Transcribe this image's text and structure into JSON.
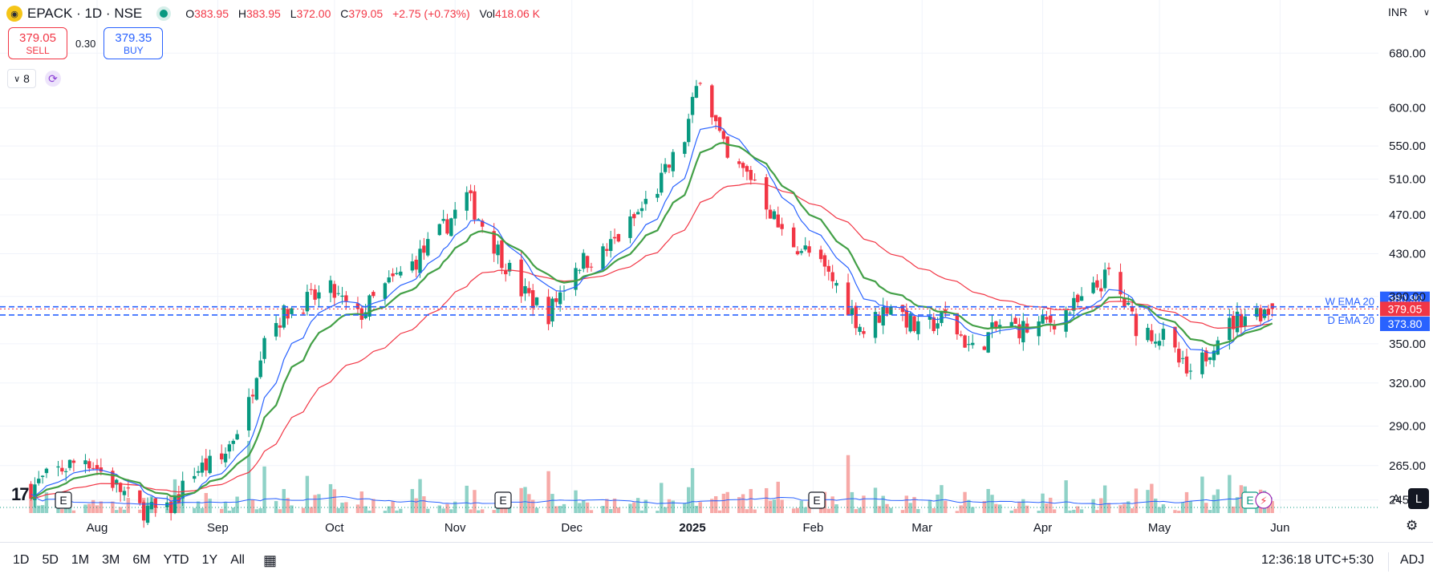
{
  "header": {
    "symbol": "EPACK · 1D · NSE",
    "open_label": "O",
    "open": "383.95",
    "high_label": "H",
    "high": "383.95",
    "low_label": "L",
    "low": "372.00",
    "close_label": "C",
    "close": "379.05",
    "change": "+2.75 (+0.73%)",
    "vol_label": "Vol",
    "vol": "418.06 K"
  },
  "trade": {
    "sell_price": "379.05",
    "sell_label": "SELL",
    "spread": "0.30",
    "buy_price": "379.35",
    "buy_label": "BUY"
  },
  "indicators_toggle": {
    "count": "8"
  },
  "currency": "INR",
  "scale_buttons": {
    "auto": "A",
    "log": "L"
  },
  "bottom_bar": {
    "ranges": [
      "1D",
      "5D",
      "1M",
      "3M",
      "6M",
      "YTD",
      "1Y",
      "All"
    ],
    "clock": "12:36:18 UTC+5:30",
    "adj": "ADJ"
  },
  "colors": {
    "up": "#089981",
    "down": "#f23645",
    "ema_blue": "#2962ff",
    "ema_green": "#43a047",
    "ema_red": "#f23645"
  },
  "icons": [
    "logo-icon",
    "live-dot-icon",
    "chevron-down-icon",
    "sync-icon",
    "calendar-icon",
    "gear-icon",
    "earnings-icon",
    "lightning-icon"
  ],
  "chart_data": {
    "type": "candlestick",
    "symbol": "EPACK",
    "interval": "1D",
    "exchange": "NSE",
    "scale": "log",
    "y_ticks": [
      245,
      265,
      290,
      320,
      350,
      390,
      430,
      470,
      510,
      550,
      600,
      680
    ],
    "y_tick_labels": [
      "245.00",
      "265.00",
      "290.00",
      "320.00",
      "350.00",
      "390.00",
      "430.00",
      "470.00",
      "510.00",
      "550.00",
      "600.00",
      "680.00"
    ],
    "x_labels": [
      "Aug",
      "Sep",
      "Oct",
      "Nov",
      "Dec",
      "2025",
      "Feb",
      "Mar",
      "Apr",
      "May",
      "Jun"
    ],
    "ylim": [
      228,
      700
    ],
    "price_labels": [
      {
        "text": "380.90",
        "value": 380.9,
        "color": "#2962ff"
      },
      {
        "text": "379.05",
        "value": 379.05,
        "color": "#f23645"
      },
      {
        "text": "373.80",
        "value": 373.8,
        "color": "#2962ff"
      }
    ],
    "annotations": [
      {
        "text": "W EMA 20",
        "value": 380.9
      },
      {
        "text": "D EMA 20",
        "value": 373.8
      }
    ],
    "earnings_markers": [
      "E",
      "E",
      "E",
      "E"
    ],
    "anchors": [
      {
        "date": "2024-07-15",
        "price": 252
      },
      {
        "date": "2024-07-22",
        "price": 262
      },
      {
        "date": "2024-07-29",
        "price": 270
      },
      {
        "date": "2024-08-05",
        "price": 255
      },
      {
        "date": "2024-08-12",
        "price": 240
      },
      {
        "date": "2024-08-19",
        "price": 238
      },
      {
        "date": "2024-08-26",
        "price": 262
      },
      {
        "date": "2024-09-02",
        "price": 268
      },
      {
        "date": "2024-09-09",
        "price": 305
      },
      {
        "date": "2024-09-13",
        "price": 360
      },
      {
        "date": "2024-09-20",
        "price": 380
      },
      {
        "date": "2024-09-30",
        "price": 395
      },
      {
        "date": "2024-10-07",
        "price": 372
      },
      {
        "date": "2024-10-14",
        "price": 398
      },
      {
        "date": "2024-10-21",
        "price": 420
      },
      {
        "date": "2024-10-28",
        "price": 450
      },
      {
        "date": "2024-11-04",
        "price": 490
      },
      {
        "date": "2024-11-11",
        "price": 440
      },
      {
        "date": "2024-11-18",
        "price": 395
      },
      {
        "date": "2024-11-25",
        "price": 375
      },
      {
        "date": "2024-12-02",
        "price": 420
      },
      {
        "date": "2024-12-09",
        "price": 430
      },
      {
        "date": "2024-12-16",
        "price": 460
      },
      {
        "date": "2024-12-23",
        "price": 500
      },
      {
        "date": "2024-12-30",
        "price": 560
      },
      {
        "date": "2025-01-03",
        "price": 650
      },
      {
        "date": "2025-01-10",
        "price": 530
      },
      {
        "date": "2025-01-17",
        "price": 510
      },
      {
        "date": "2025-01-24",
        "price": 450
      },
      {
        "date": "2025-01-31",
        "price": 430
      },
      {
        "date": "2025-02-07",
        "price": 400
      },
      {
        "date": "2025-02-14",
        "price": 360
      },
      {
        "date": "2025-02-21",
        "price": 385
      },
      {
        "date": "2025-02-28",
        "price": 360
      },
      {
        "date": "2025-03-07",
        "price": 372
      },
      {
        "date": "2025-03-14",
        "price": 345
      },
      {
        "date": "2025-03-21",
        "price": 365
      },
      {
        "date": "2025-03-28",
        "price": 362
      },
      {
        "date": "2025-04-04",
        "price": 370
      },
      {
        "date": "2025-04-11",
        "price": 385
      },
      {
        "date": "2025-04-18",
        "price": 410
      },
      {
        "date": "2025-04-25",
        "price": 365
      },
      {
        "date": "2025-05-02",
        "price": 355
      },
      {
        "date": "2025-05-09",
        "price": 322
      },
      {
        "date": "2025-05-16",
        "price": 358
      },
      {
        "date": "2025-05-23",
        "price": 375
      },
      {
        "date": "2025-05-30",
        "price": 379
      }
    ]
  }
}
